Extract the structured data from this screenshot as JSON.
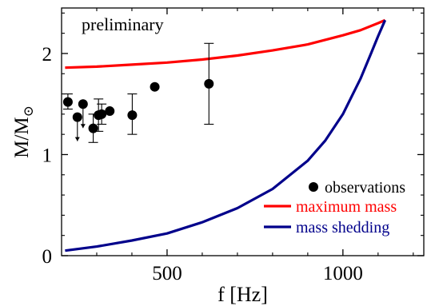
{
  "chart_data": {
    "type": "scatter",
    "annotation": "preliminary",
    "xlabel": "f [Hz]",
    "ylabel": "M/M",
    "ylabel_symbol": "⊙",
    "xlim": [
      200,
      1230
    ],
    "ylim": [
      0,
      2.45
    ],
    "xticks": [
      500,
      1000
    ],
    "yticks": [
      0,
      1,
      2
    ],
    "grid": false,
    "legend_position": "bottom-right",
    "legend": [
      {
        "label": "observations",
        "kind": "marker",
        "color": "#000000"
      },
      {
        "label": "maximum mass",
        "kind": "line",
        "color": "#ff0000"
      },
      {
        "label": "mass shedding",
        "kind": "line",
        "color": "#00008b"
      }
    ],
    "observations": [
      {
        "x": 218,
        "y": 1.52,
        "err": [
          1.45,
          1.6
        ]
      },
      {
        "x": 245,
        "y": 1.37,
        "upper_limit": true
      },
      {
        "x": 261,
        "y": 1.5,
        "upper_limit": true
      },
      {
        "x": 290,
        "y": 1.26,
        "err": [
          1.12,
          1.4
        ]
      },
      {
        "x": 305,
        "y": 1.39,
        "err": [
          1.23,
          1.55
        ]
      },
      {
        "x": 314,
        "y": 1.4,
        "err": [
          1.3,
          1.5
        ]
      },
      {
        "x": 337,
        "y": 1.43
      },
      {
        "x": 401,
        "y": 1.39,
        "err": [
          1.2,
          1.6
        ]
      },
      {
        "x": 465,
        "y": 1.67
      },
      {
        "x": 619,
        "y": 1.7,
        "err": [
          1.3,
          2.1
        ]
      }
    ],
    "series": [
      {
        "name": "maximum mass",
        "color": "#ff0000",
        "x": [
          210,
          300,
          400,
          500,
          600,
          700,
          800,
          900,
          1000,
          1050,
          1100,
          1120
        ],
        "y": [
          1.86,
          1.87,
          1.89,
          1.91,
          1.94,
          1.98,
          2.03,
          2.09,
          2.18,
          2.23,
          2.3,
          2.33
        ]
      },
      {
        "name": "mass shedding",
        "color": "#00008b",
        "x": [
          210,
          300,
          400,
          500,
          600,
          700,
          800,
          900,
          950,
          1000,
          1050,
          1080,
          1100,
          1120
        ],
        "y": [
          0.05,
          0.09,
          0.15,
          0.22,
          0.33,
          0.47,
          0.66,
          0.94,
          1.14,
          1.4,
          1.75,
          2.0,
          2.17,
          2.33
        ]
      }
    ]
  }
}
